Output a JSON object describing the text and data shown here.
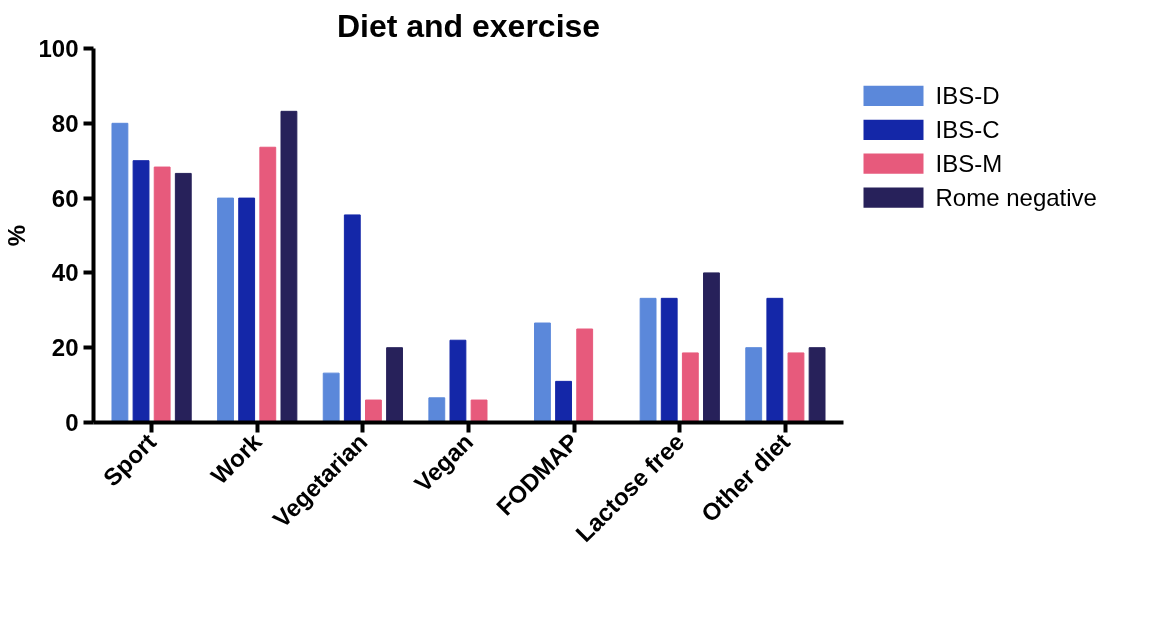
{
  "chart_data": {
    "type": "bar",
    "title": "Diet and exercise",
    "ylabel": "%",
    "categories": [
      "Sport",
      "Work",
      "Vegetarian",
      "Vegan",
      "FODMAP",
      "Lactose free",
      "Other diet"
    ],
    "series": [
      {
        "name": "IBS-D",
        "color": "#5b88da",
        "values": [
          80,
          60,
          13.2,
          6.6,
          26.6,
          33.2,
          20
        ]
      },
      {
        "name": "IBS-C",
        "color": "#1427a8",
        "values": [
          70,
          60,
          55.5,
          22,
          11,
          33.2,
          33.2
        ]
      },
      {
        "name": "IBS-M",
        "color": "#e75a7c",
        "values": [
          68.3,
          73.6,
          6,
          6,
          25,
          18.6,
          18.6
        ]
      },
      {
        "name": "Rome negative",
        "color": "#27215a",
        "values": [
          66.6,
          83.2,
          20,
          0,
          0,
          40,
          20
        ]
      }
    ],
    "ylim": [
      0,
      100
    ],
    "yticks": [
      0,
      20,
      40,
      60,
      80,
      100
    ],
    "grid": false,
    "legend": "right"
  }
}
